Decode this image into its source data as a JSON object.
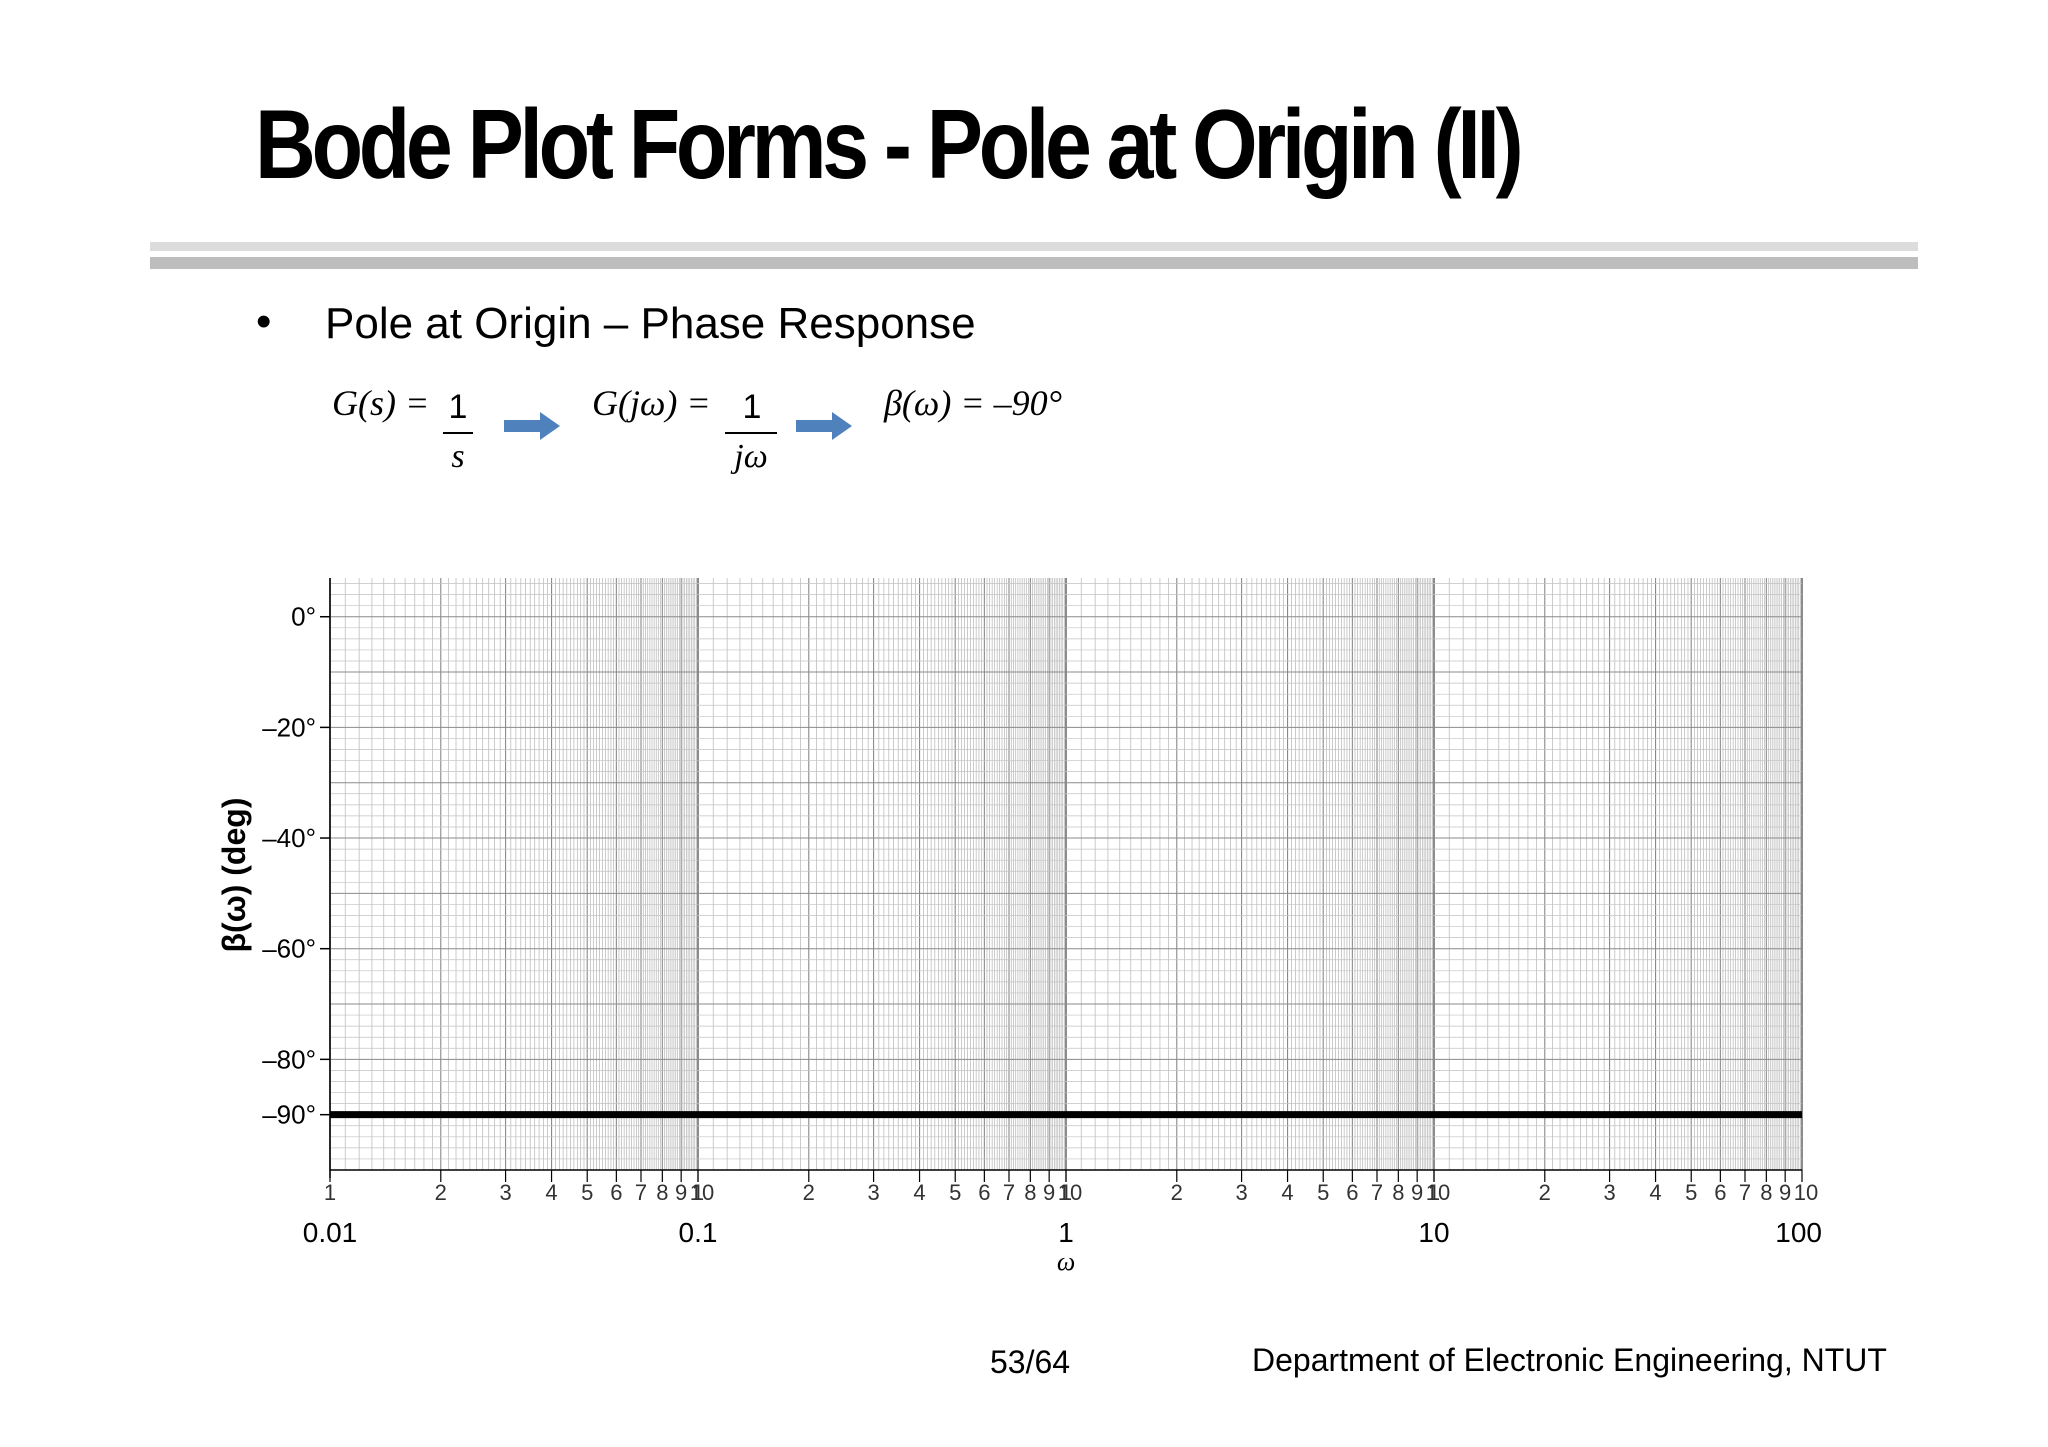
{
  "slide": {
    "title": "Bode Plot Forms - Pole at Origin (II)",
    "bullet_symbol": "•",
    "bullet": "Pole at Origin – Phase Response",
    "equations": {
      "eq1_lhs": "G(s) =",
      "eq1_num": "1",
      "eq1_den": "s",
      "eq2_lhs": "G(jω) =",
      "eq2_num": "1",
      "eq2_den": "jω",
      "eq3": "β(ω) = –90°"
    },
    "arrow_color": "#4f81bd",
    "footer_page": "53/64",
    "footer_dept": "Department of Electronic Engineering, NTUT"
  },
  "chart_data": {
    "type": "line",
    "xscale": "log",
    "xlim": [
      0.01,
      100
    ],
    "ylim": [
      -100,
      7
    ],
    "xlabel": "ω",
    "ylabel": "β(ω)  (deg)",
    "yticks": [
      {
        "value": 0,
        "label": "0°"
      },
      {
        "value": -20,
        "label": "–20°"
      },
      {
        "value": -40,
        "label": "–40°"
      },
      {
        "value": -60,
        "label": "–60°"
      },
      {
        "value": -80,
        "label": "–80°"
      },
      {
        "value": -90,
        "label": "–90°"
      }
    ],
    "decade_labels": [
      "0.01",
      "0.1",
      "1",
      "10",
      "100"
    ],
    "minor_labels": [
      "1",
      "2",
      "3",
      "4",
      "5",
      "6",
      "7",
      "8",
      "9",
      "10"
    ],
    "grid": true,
    "series": [
      {
        "x": [
          0.01,
          100
        ],
        "y": [
          -90,
          -90
        ],
        "color": "#000000"
      }
    ]
  }
}
